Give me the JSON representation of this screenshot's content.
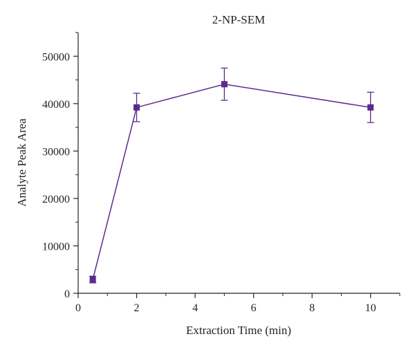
{
  "chart_data": {
    "type": "line",
    "title": "2-NP-SEM",
    "xlabel": "Extraction Time (min)",
    "ylabel": "Analyte Peak Area",
    "xlim": [
      0,
      11
    ],
    "ylim": [
      0,
      55000
    ],
    "x_ticks": [
      0,
      2,
      4,
      6,
      8,
      10
    ],
    "y_ticks": [
      0,
      10000,
      20000,
      30000,
      40000,
      50000
    ],
    "x_tick_labels": [
      "0",
      "2",
      "4",
      "6",
      "8",
      "10"
    ],
    "y_tick_labels": [
      "0",
      "10000",
      "20000",
      "30000",
      "40000",
      "50000"
    ],
    "grid": false,
    "series": [
      {
        "x": [
          0.5,
          2,
          5,
          10
        ],
        "values": [
          2900,
          39200,
          44100,
          39200
        ],
        "error": [
          700,
          3000,
          3400,
          3200
        ],
        "color": "#5b2a8c",
        "marker": "square"
      }
    ]
  }
}
